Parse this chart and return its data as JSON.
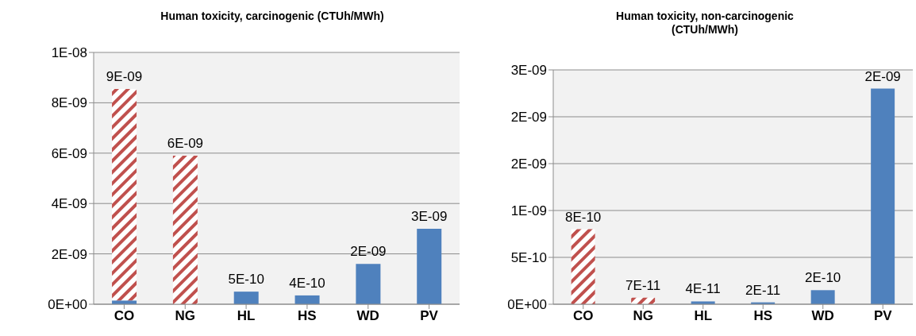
{
  "chart_data": [
    {
      "type": "bar",
      "title": "Human toxicity, carcinogenic (CTUh/MWh)",
      "categories": [
        "CO",
        "NG",
        "HL",
        "HS",
        "WD",
        "PV"
      ],
      "stacked": true,
      "series": [
        {
          "color": "#4f81bd",
          "values": [
            1.5e-10,
            0,
            5e-10,
            3.5e-10,
            1.6e-09,
            3e-09
          ]
        },
        {
          "color": "#c0504d",
          "values": [
            8.4e-09,
            5.9e-09,
            0,
            0,
            0,
            0
          ]
        }
      ],
      "totals": [
        "9E-09",
        "6E-09",
        "5E-10",
        "4E-10",
        "2E-09",
        "3E-09"
      ],
      "ylim": [
        0,
        1e-08
      ],
      "yticks": [
        {
          "value": 0,
          "label": "0E+00"
        },
        {
          "value": 2e-09,
          "label": "2E-09"
        },
        {
          "value": 4e-09,
          "label": "4E-09"
        },
        {
          "value": 6e-09,
          "label": "6E-09"
        },
        {
          "value": 8e-09,
          "label": "8E-09"
        },
        {
          "value": 1e-08,
          "label": "1E-08"
        }
      ],
      "grid": "y",
      "legend": false
    },
    {
      "type": "bar",
      "title": "Human toxicity, non-carcinogenic (CTUh/MWh)",
      "categories": [
        "CO",
        "NG",
        "HL",
        "HS",
        "WD",
        "PV"
      ],
      "stacked": true,
      "series": [
        {
          "color": "#4f81bd",
          "values": [
            0,
            0,
            3e-11,
            2e-11,
            1.5e-10,
            2.3e-09
          ]
        },
        {
          "color": "#c0504d",
          "values": [
            8e-10,
            7e-11,
            0,
            0,
            0,
            0
          ]
        }
      ],
      "totals": [
        "8E-10",
        "7E-11",
        "4E-11",
        "2E-11",
        "2E-10",
        "2E-09"
      ],
      "ylim": [
        0,
        2.5e-09
      ],
      "yticks": [
        {
          "value": 0,
          "label": "0E+00"
        },
        {
          "value": 5e-10,
          "label": "5E-10"
        },
        {
          "value": 1e-09,
          "label": "1E-09"
        },
        {
          "value": 1.5e-09,
          "label": "2E-09"
        },
        {
          "value": 2e-09,
          "label": "2E-09"
        },
        {
          "value": 2.5e-09,
          "label": "3E-09"
        }
      ],
      "grid": "y",
      "legend": false
    }
  ]
}
